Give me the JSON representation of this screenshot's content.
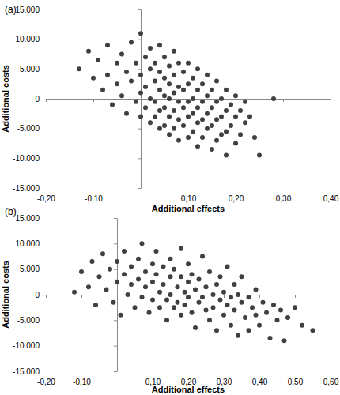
{
  "chart_data": [
    {
      "type": "scatter",
      "title": "(a)",
      "x_label": "Additional effects",
      "y_label": "Additional costs",
      "color": "#404040",
      "marker": "circle",
      "xlim": [
        -0.2,
        0.4
      ],
      "ylim": [
        -15000,
        15000
      ],
      "xticks": [
        {
          "value": -0.2,
          "label": "-0,20"
        },
        {
          "value": -0.1,
          "label": "-0,10"
        },
        {
          "value": 0.1,
          "label": "0,10"
        },
        {
          "value": 0.2,
          "label": "0,20"
        },
        {
          "value": 0.3,
          "label": "0,30"
        },
        {
          "value": 0.4,
          "label": "0,40"
        }
      ],
      "yticks": [
        {
          "value": -15000,
          "label": "-15.000"
        },
        {
          "value": -10000,
          "label": "-10.000"
        },
        {
          "value": -5000,
          "label": "-5.000"
        },
        0,
        {
          "value": 5000,
          "label": "5.000"
        },
        {
          "value": 10000,
          "label": "10.000"
        },
        {
          "value": 15000,
          "label": "15.000"
        }
      ],
      "x": [
        -0.13,
        -0.11,
        -0.1,
        -0.09,
        -0.08,
        -0.07,
        -0.07,
        -0.06,
        -0.05,
        -0.05,
        -0.04,
        -0.04,
        -0.03,
        -0.03,
        -0.02,
        -0.02,
        -0.01,
        -0.01,
        0.0,
        0.0,
        0.0,
        0.0,
        0.01,
        0.01,
        0.01,
        0.02,
        0.02,
        0.02,
        0.02,
        0.03,
        0.03,
        0.03,
        0.03,
        0.04,
        0.04,
        0.04,
        0.04,
        0.04,
        0.05,
        0.05,
        0.05,
        0.05,
        0.05,
        0.06,
        0.06,
        0.06,
        0.06,
        0.06,
        0.07,
        0.07,
        0.07,
        0.07,
        0.07,
        0.08,
        0.08,
        0.08,
        0.08,
        0.08,
        0.09,
        0.09,
        0.09,
        0.09,
        0.1,
        0.1,
        0.1,
        0.1,
        0.1,
        0.11,
        0.11,
        0.11,
        0.11,
        0.12,
        0.12,
        0.12,
        0.12,
        0.12,
        0.13,
        0.13,
        0.13,
        0.13,
        0.14,
        0.14,
        0.14,
        0.14,
        0.15,
        0.15,
        0.15,
        0.15,
        0.16,
        0.16,
        0.16,
        0.16,
        0.17,
        0.17,
        0.17,
        0.18,
        0.18,
        0.18,
        0.18,
        0.19,
        0.19,
        0.2,
        0.2,
        0.2,
        0.21,
        0.21,
        0.22,
        0.22,
        0.23,
        0.24,
        0.25,
        0.28
      ],
      "values": [
        5000,
        8000,
        3500,
        6500,
        1500,
        9000,
        4000,
        -1000,
        6000,
        2500,
        7500,
        500,
        4500,
        -2500,
        9500,
        3000,
        6000,
        -500,
        11000,
        4000,
        1000,
        -3000,
        7000,
        2000,
        -1500,
        8500,
        5000,
        0,
        -4000,
        6000,
        3000,
        -500,
        -3000,
        9000,
        4500,
        1500,
        -2000,
        -5000,
        7000,
        3500,
        500,
        -1500,
        -4500,
        5500,
        2500,
        0,
        -3000,
        -6000,
        8000,
        4000,
        1000,
        -2000,
        -5000,
        6000,
        2000,
        -500,
        -3500,
        -7000,
        4500,
        1500,
        -1500,
        -4500,
        6000,
        2500,
        -500,
        -3000,
        -6500,
        3500,
        0,
        -2500,
        -5500,
        5000,
        1500,
        -1500,
        -4000,
        -8000,
        2500,
        -500,
        -3500,
        -6500,
        4000,
        500,
        -2500,
        -5000,
        1500,
        -1500,
        -4500,
        -8500,
        3000,
        -500,
        -3500,
        -7000,
        0,
        -3000,
        -6000,
        1500,
        -2000,
        -5500,
        -9500,
        -1000,
        -4500,
        500,
        -3000,
        -7500,
        -2000,
        -6000,
        -500,
        -4000,
        -3000,
        -6500,
        -9500,
        0
      ]
    },
    {
      "type": "scatter",
      "title": "(b)",
      "x_label": "Additional effects",
      "y_label": "Additional costs",
      "color": "#404040",
      "marker": "circle",
      "xlim": [
        -0.2,
        0.6
      ],
      "ylim": [
        -15000,
        15000
      ],
      "xticks": [
        {
          "value": -0.2,
          "label": "-0,20"
        },
        {
          "value": -0.1,
          "label": "-0,10"
        },
        {
          "value": 0.1,
          "label": "0,10"
        },
        {
          "value": 0.2,
          "label": "0,20"
        },
        {
          "value": 0.3,
          "label": "0,30"
        },
        {
          "value": 0.4,
          "label": "0,40"
        },
        {
          "value": 0.5,
          "label": "0,50"
        },
        {
          "value": 0.6,
          "label": "0,60"
        }
      ],
      "yticks": [
        {
          "value": -15000,
          "label": "-15.000"
        },
        {
          "value": -10000,
          "label": "-10.000"
        },
        {
          "value": -5000,
          "label": "-5.000"
        },
        0,
        {
          "value": 5000,
          "label": "5.000"
        },
        {
          "value": 10000,
          "label": "10.000"
        },
        {
          "value": 15000,
          "label": "15.000"
        }
      ],
      "x": [
        -0.12,
        -0.1,
        -0.08,
        -0.07,
        -0.06,
        -0.05,
        -0.04,
        -0.03,
        -0.02,
        -0.01,
        0.0,
        0.0,
        0.01,
        0.02,
        0.02,
        0.03,
        0.04,
        0.04,
        0.05,
        0.06,
        0.06,
        0.07,
        0.07,
        0.08,
        0.08,
        0.09,
        0.1,
        0.1,
        0.1,
        0.11,
        0.11,
        0.12,
        0.12,
        0.13,
        0.13,
        0.14,
        0.14,
        0.15,
        0.15,
        0.15,
        0.16,
        0.16,
        0.17,
        0.17,
        0.18,
        0.18,
        0.18,
        0.19,
        0.19,
        0.2,
        0.2,
        0.2,
        0.21,
        0.21,
        0.22,
        0.22,
        0.23,
        0.23,
        0.24,
        0.24,
        0.25,
        0.25,
        0.26,
        0.26,
        0.27,
        0.27,
        0.28,
        0.28,
        0.29,
        0.29,
        0.3,
        0.3,
        0.31,
        0.31,
        0.32,
        0.32,
        0.33,
        0.33,
        0.34,
        0.34,
        0.35,
        0.35,
        0.36,
        0.37,
        0.37,
        0.38,
        0.39,
        0.39,
        0.4,
        0.41,
        0.42,
        0.43,
        0.44,
        0.45,
        0.46,
        0.47,
        0.48,
        0.5,
        0.52,
        0.55
      ],
      "values": [
        500,
        4500,
        1500,
        6500,
        -2000,
        3500,
        8000,
        1000,
        5000,
        -1500,
        6500,
        2500,
        -4000,
        4000,
        8500,
        0,
        5500,
        2000,
        -2500,
        7000,
        3000,
        -500,
        10000,
        4500,
        1500,
        -3500,
        6000,
        2500,
        -1000,
        8500,
        4000,
        500,
        -2500,
        5500,
        2000,
        -1000,
        -5000,
        7000,
        3500,
        0,
        -2500,
        5000,
        1500,
        -1500,
        9000,
        3500,
        -4000,
        500,
        -2000,
        6000,
        2500,
        -500,
        -3500,
        4000,
        1000,
        -6500,
        -1500,
        3000,
        7500,
        -500,
        -3000,
        1500,
        -5000,
        4500,
        0,
        -2500,
        2000,
        -7000,
        -1000,
        3500,
        -4000,
        500,
        -2000,
        5500,
        -500,
        -6000,
        2000,
        -3000,
        -8000,
        0,
        -1500,
        3500,
        -4500,
        -500,
        -7000,
        -2500,
        1000,
        -4000,
        -6000,
        -1500,
        -3500,
        -8500,
        -2000,
        -5000,
        -3000,
        -9000,
        -4500,
        -2500,
        -6000,
        -7000
      ]
    }
  ]
}
